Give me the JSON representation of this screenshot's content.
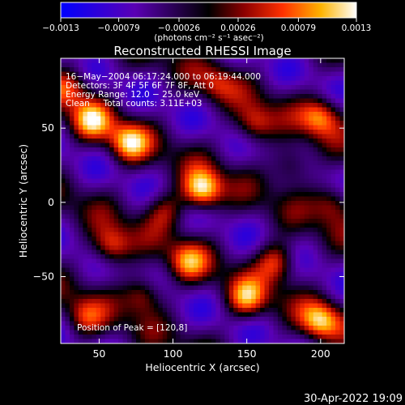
{
  "chart_data": {
    "type": "heatmap",
    "title": "Reconstructed RHESSI Image",
    "xlabel": "Heliocentric X (arcsec)",
    "ylabel": "Heliocentric Y (arcsec)",
    "xlim": [
      24,
      216
    ],
    "ylim": [
      -95,
      97
    ],
    "x_ticks": [
      50,
      100,
      150,
      200
    ],
    "y_ticks": [
      50,
      0,
      -50
    ],
    "colorbar": {
      "label": "(photons cm⁻² s⁻¹ asec⁻²)",
      "min": -0.0013,
      "max": 0.0013,
      "tick_labels": [
        "−0.0013",
        "−0.00079",
        "−0.00026",
        "0.00026",
        "0.00079",
        "0.0013"
      ],
      "tick_values": [
        -0.0013,
        -0.00079,
        -0.00026,
        0.00026,
        0.00079,
        0.0013
      ]
    },
    "annotations": [
      "16−May−2004 06:17:24.000 to 06:19:44.000",
      "Detectors: 3F 4F 5F 6F 7F 8F, Att 0",
      "Energy Range: 12.0 − 25.0 keV",
      "Clean     Total counts: 3.11E+03"
    ],
    "peak_label": "Position of Peak = [120,8]",
    "peak": [
      120,
      8
    ],
    "sources": [
      {
        "x": 120,
        "y": 8,
        "amp": 1.0
      },
      {
        "x": 70,
        "y": 40,
        "amp": 0.8
      },
      {
        "x": 45,
        "y": 55,
        "amp": 0.7
      },
      {
        "x": 30,
        "y": 78,
        "amp": 0.6
      },
      {
        "x": 155,
        "y": 52,
        "amp": 0.6
      },
      {
        "x": 200,
        "y": 58,
        "amp": 0.7
      },
      {
        "x": 180,
        "y": 25,
        "amp": 0.5
      },
      {
        "x": 95,
        "y": -5,
        "amp": 0.5
      },
      {
        "x": 58,
        "y": -30,
        "amp": 0.7
      },
      {
        "x": 110,
        "y": -40,
        "amp": 0.6
      },
      {
        "x": 170,
        "y": -40,
        "amp": 0.7
      },
      {
        "x": 80,
        "y": -62,
        "amp": 0.6
      },
      {
        "x": 150,
        "y": -65,
        "amp": 0.7
      },
      {
        "x": 200,
        "y": -80,
        "amp": 0.8
      },
      {
        "x": 40,
        "y": -78,
        "amp": 0.5
      },
      {
        "x": 208,
        "y": 0,
        "amp": 0.5
      },
      {
        "x": 130,
        "y": 80,
        "amp": 0.4
      }
    ]
  },
  "footer": {
    "timestamp": "30-Apr-2022 19:09"
  }
}
